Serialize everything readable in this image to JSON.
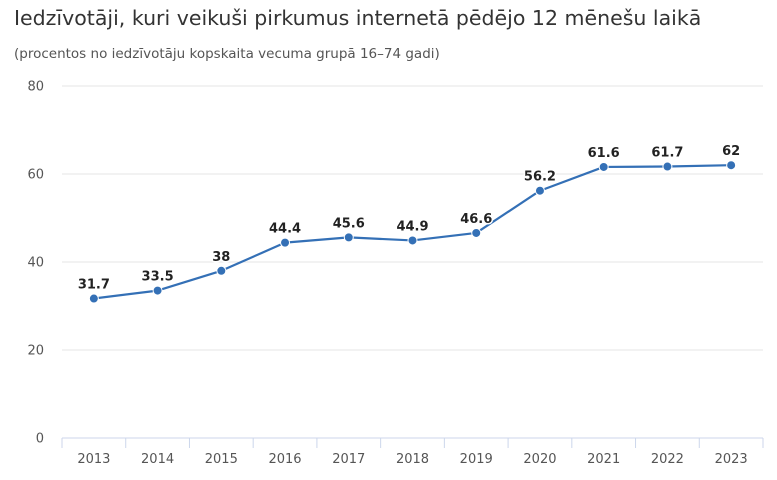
{
  "chart_data": {
    "type": "line",
    "title": "Iedzīvotāji, kuri veikuši pirkumus internetā pēdējo 12 mēnešu laikā",
    "subtitle": "(procentos no iedzīvotāju kopskaita vecuma grupā 16–74 gadi)",
    "categories": [
      "2013",
      "2014",
      "2015",
      "2016",
      "2017",
      "2018",
      "2019",
      "2020",
      "2021",
      "2022",
      "2023"
    ],
    "series": [
      {
        "values": [
          31.7,
          33.5,
          38,
          44.4,
          45.6,
          44.9,
          46.6,
          56.2,
          61.6,
          61.7,
          62
        ]
      }
    ],
    "data_labels": [
      "31.7",
      "33.5",
      "38",
      "44.4",
      "45.6",
      "44.9",
      "46.6",
      "56.2",
      "61.6",
      "61.7",
      "62"
    ],
    "ylim": [
      0,
      80
    ],
    "yticks": [
      "0",
      "20",
      "40",
      "60",
      "80"
    ],
    "xlabel": "",
    "ylabel": "",
    "grid": true,
    "legend": "none",
    "colors": {
      "line": "#3470b6",
      "marker": "#3470b6",
      "grid": "#e6e6e6",
      "axis": "#ccd6eb"
    }
  }
}
